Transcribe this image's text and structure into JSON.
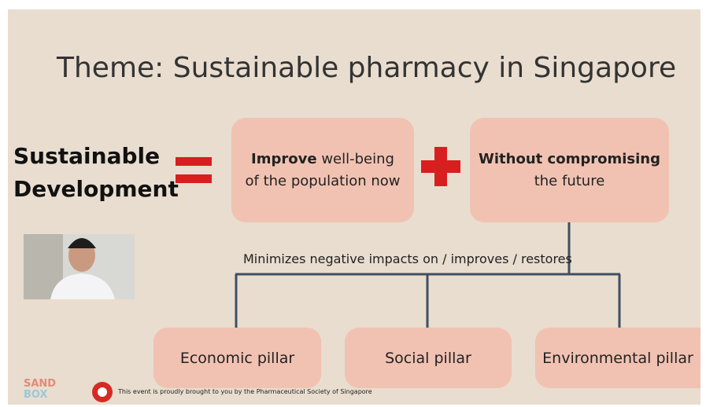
{
  "slide": {
    "title": "Theme: Sustainable pharmacy in Singapore",
    "left_label": [
      "Sustainable",
      "Development"
    ],
    "boxes": [
      {
        "bold": "Improve",
        "text": "well-being of the population now"
      },
      {
        "bold": "Without compromising",
        "text": "the future"
      }
    ],
    "connector_label": "Minimizes negative impacts on / improves / restores",
    "pillars": [
      "Economic pillar",
      "Social pillar",
      "Environmental pillar"
    ]
  },
  "footer": {
    "logo": [
      "SAND",
      "BOX"
    ],
    "credit": "This event is proudly brought to you by the Pharmaceutical Society of Singapore"
  }
}
